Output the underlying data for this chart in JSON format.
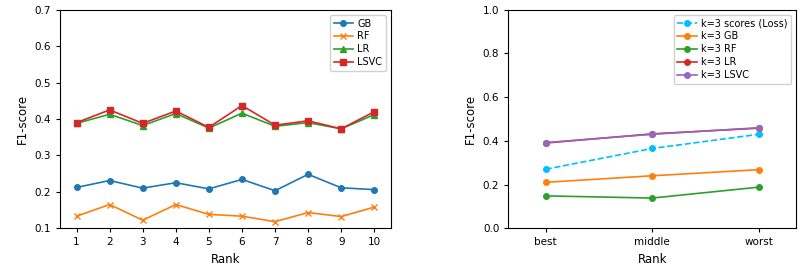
{
  "left": {
    "ranks": [
      1,
      2,
      3,
      4,
      5,
      6,
      7,
      8,
      9,
      10
    ],
    "GB": [
      0.212,
      0.231,
      0.21,
      0.225,
      0.208,
      0.234,
      0.203,
      0.248,
      0.211,
      0.206
    ],
    "RF": [
      0.133,
      0.165,
      0.122,
      0.165,
      0.138,
      0.133,
      0.118,
      0.143,
      0.132,
      0.158
    ],
    "LR": [
      0.388,
      0.413,
      0.382,
      0.415,
      0.375,
      0.416,
      0.38,
      0.39,
      0.373,
      0.412
    ],
    "LSVC": [
      0.39,
      0.425,
      0.388,
      0.422,
      0.377,
      0.437,
      0.383,
      0.395,
      0.373,
      0.42
    ],
    "ylim": [
      0.1,
      0.7
    ],
    "yticks": [
      0.1,
      0.2,
      0.3,
      0.4,
      0.5,
      0.6,
      0.7
    ],
    "xlabel": "Rank",
    "ylabel": "F1-score",
    "colors": {
      "GB": "#1f77b4",
      "RF": "#ff7f0e",
      "LR": "#2ca02c",
      "LSVC": "#d62728"
    },
    "markers": {
      "GB": "o",
      "RF": "x",
      "LR": "^",
      "LSVC": "s"
    },
    "ms": {
      "GB": 4,
      "RF": 5,
      "LR": 4,
      "LSVC": 4
    }
  },
  "right": {
    "ranks": [
      "best",
      "middle",
      "worst"
    ],
    "loss": [
      0.27,
      0.365,
      0.43
    ],
    "GB": [
      0.21,
      0.24,
      0.268
    ],
    "RF": [
      0.148,
      0.138,
      0.188
    ],
    "LR": [
      0.39,
      0.432,
      0.458
    ],
    "LSVC": [
      0.392,
      0.43,
      0.46
    ],
    "ylim": [
      0.0,
      1.0
    ],
    "yticks": [
      0.0,
      0.2,
      0.4,
      0.6,
      0.8,
      1.0
    ],
    "xlabel": "Rank",
    "ylabel": "F1-score",
    "colors": {
      "loss": "#00bfff",
      "GB": "#ff7f0e",
      "RF": "#2ca02c",
      "LR": "#d62728",
      "LSVC": "#9467bd"
    },
    "markers": {
      "loss": "o",
      "GB": "o",
      "RF": "o",
      "LR": "o",
      "LSVC": "o"
    }
  }
}
